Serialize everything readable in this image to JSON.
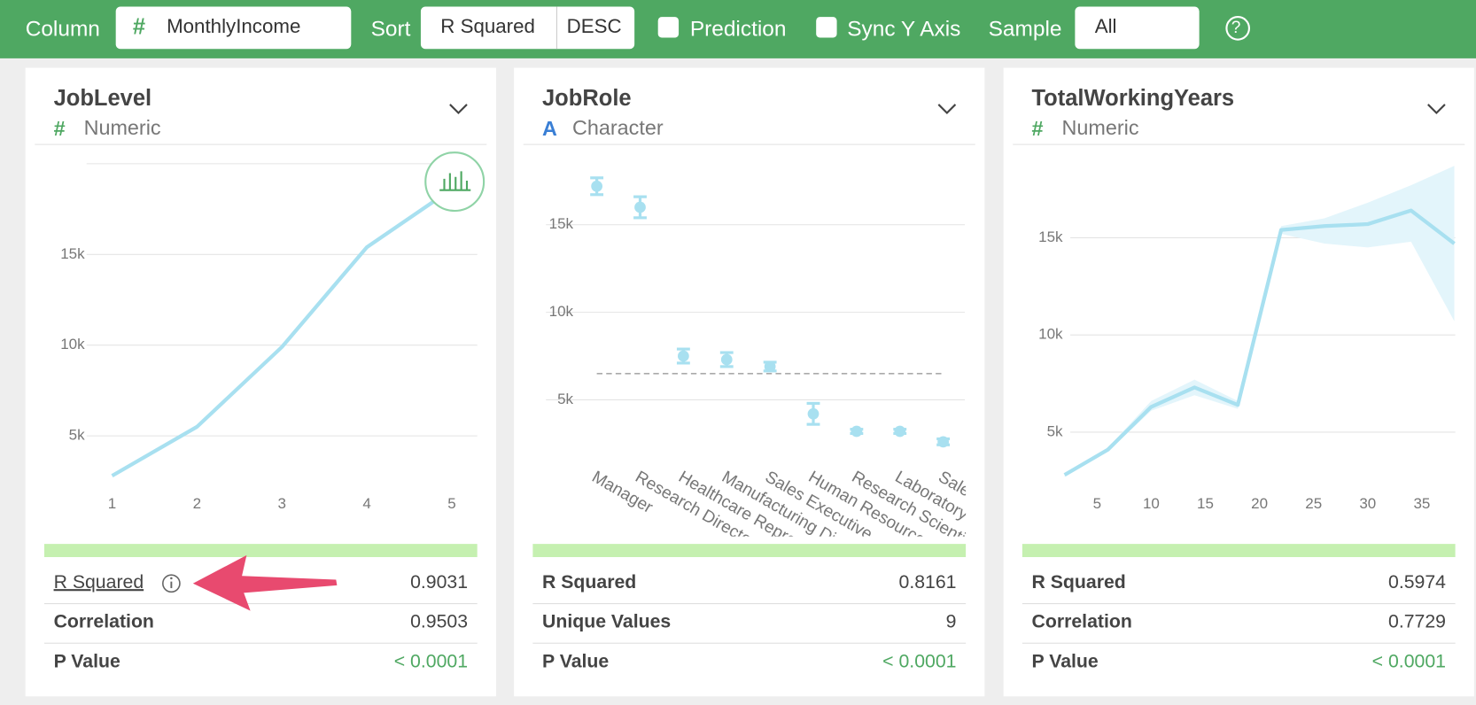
{
  "toolbar": {
    "column_label": "Column",
    "column_icon": "#",
    "column_value": "MonthlyIncome",
    "sort_label": "Sort",
    "sort_value": "R Squared",
    "sort_order": "DESC",
    "prediction": "Prediction",
    "sync_y_axis": "Sync Y Axis",
    "sample_label": "Sample",
    "sample_value": "All",
    "help": "?"
  },
  "cards": [
    {
      "title": "JobLevel",
      "type_icon": "#",
      "type_label": "Numeric",
      "stats": [
        {
          "label": "R Squared",
          "value": 0.9031
        },
        {
          "label": "Correlation",
          "value": 0.9503
        },
        {
          "label": "P Value",
          "value": "< 0.0001"
        }
      ]
    },
    {
      "title": "JobRole",
      "type_icon": "A",
      "type_label": "Character",
      "stats": [
        {
          "label": "R Squared",
          "value": 0.8161
        },
        {
          "label": "Unique Values",
          "value": 9
        },
        {
          "label": "P Value",
          "value": "< 0.0001"
        }
      ]
    },
    {
      "title": "TotalWorkingYears",
      "type_icon": "#",
      "type_label": "Numeric",
      "stats": [
        {
          "label": "R Squared",
          "value": 0.5974
        },
        {
          "label": "Correlation",
          "value": 0.7729
        },
        {
          "label": "P Value",
          "value": "< 0.0001"
        }
      ]
    }
  ],
  "chart_data": [
    {
      "type": "line",
      "x": [
        1,
        2,
        3,
        4,
        5
      ],
      "values": [
        2800,
        5500,
        9900,
        15400,
        18600
      ],
      "color": "#a8e0f0",
      "xlim": [
        0.7,
        5.3
      ],
      "ylim": [
        2000,
        20000
      ],
      "xticks": [
        1,
        2,
        3,
        4,
        5
      ],
      "yticks": [
        {
          "value": 5000,
          "label": "5k"
        },
        {
          "value": 10000,
          "label": "10k"
        },
        {
          "value": 15000,
          "label": "15k"
        }
      ],
      "grid": true
    },
    {
      "type": "errorbar",
      "categories": [
        "Manager",
        "Research Director",
        "Healthcare Representative",
        "Manufacturing Director",
        "Sales Executive",
        "Human Resources",
        "Research Scientist",
        "Laboratory Technician",
        "Sales Representative"
      ],
      "values": [
        17200,
        16000,
        7500,
        7300,
        6900,
        4200,
        3200,
        3200,
        2600
      ],
      "errors": [
        480,
        600,
        400,
        400,
        250,
        600,
        120,
        120,
        170
      ],
      "reference_line": 6500,
      "color": "#a8e0f0",
      "ylim": [
        1500,
        18700
      ],
      "yticks": [
        {
          "value": 5000,
          "label": "5k"
        },
        {
          "value": 10000,
          "label": "10k"
        },
        {
          "value": 15000,
          "label": "15k"
        }
      ],
      "grid": true
    },
    {
      "type": "line",
      "x": [
        2,
        6,
        10,
        14,
        18,
        22,
        26,
        30,
        34,
        38
      ],
      "values": [
        2800,
        4100,
        6300,
        7300,
        6400,
        15400,
        15600,
        15700,
        16400,
        14700
      ],
      "lower": [
        2700,
        4000,
        6100,
        6900,
        6200,
        15200,
        14700,
        14500,
        14800,
        10700
      ],
      "upper": [
        2900,
        4200,
        6600,
        7700,
        6600,
        15600,
        16000,
        16800,
        17700,
        18700
      ],
      "color": "#a8e0f0",
      "band_color": "#e3f5fb",
      "xlim": [
        -1.3,
        40
      ],
      "ylim": [
        2300,
        19000
      ],
      "xticks": [
        5,
        10,
        15,
        20,
        25,
        30,
        35
      ],
      "yticks": [
        {
          "value": 5000,
          "label": "5k"
        },
        {
          "value": 10000,
          "label": "10k"
        },
        {
          "value": 15000,
          "label": "15k"
        }
      ],
      "grid": true
    }
  ]
}
